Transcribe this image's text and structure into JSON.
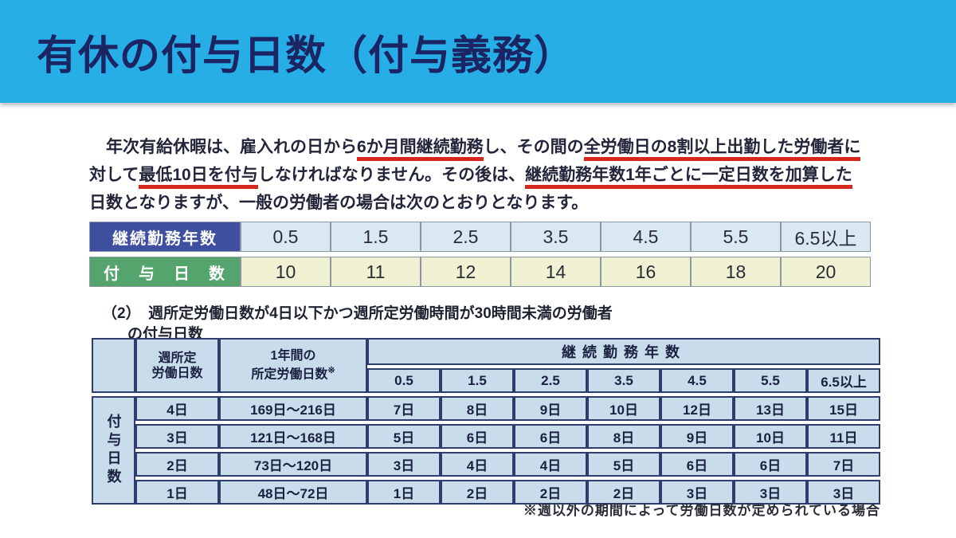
{
  "title": "有休の付与日数（付与義務）",
  "colors": {
    "banner_cyan": "#27aee6",
    "title_navy": "#1b2564",
    "underline_red": "#d4281f",
    "table1_header_blue": "#3e4fa0",
    "table1_header_green": "#55a46e",
    "table1_row1_bg": "#d9e8f3",
    "table1_row2_bg": "#f0f1d2",
    "table2_cell_bg": "#c9dcec",
    "table2_border_navy": "#2e3e6c"
  },
  "paragraph": {
    "lines": [
      [
        {
          "text": "　年次有給休暇は、雇入れの日から",
          "u": false
        },
        {
          "text": "6か月間継続勤務",
          "u": true
        },
        {
          "text": "し、その間の",
          "u": false
        },
        {
          "text": "全労働日の8割以上出勤した労働者に",
          "u": true
        }
      ],
      [
        {
          "text": "対して",
          "u": false
        },
        {
          "text": "最低10日を付与",
          "u": true
        },
        {
          "text": "しなければなりません。その後は、",
          "u": false
        },
        {
          "text": "継続勤務年数1年ごとに一定日数を加算した",
          "u": true
        }
      ],
      [
        {
          "text": "日数となりますが、一般の労働者の場合は次のとおりとなります。",
          "u": false
        }
      ]
    ]
  },
  "table1": {
    "row1_label": "継続勤務年数",
    "row1_values": [
      "0.5",
      "1.5",
      "2.5",
      "3.5",
      "4.5",
      "5.5",
      "6.5以上"
    ],
    "row2_label": "付　与　日　数",
    "row2_values": [
      "10",
      "11",
      "12",
      "14",
      "16",
      "18",
      "20"
    ]
  },
  "subheading": {
    "line1": "（2）　週所定労働日数が4日以下かつ週所定労働時間が30時間未満の労働者",
    "line2": "の付与日数"
  },
  "table2": {
    "corner_label": "付与日数",
    "col_weekly_line1": "週所定",
    "col_weekly_line2": "労働日数",
    "col_yearly_line1": "1年間の",
    "col_yearly_line2": "所定労働日数",
    "col_yearly_note": "※",
    "col_group": "継続勤務年数",
    "years": [
      "0.5",
      "1.5",
      "2.5",
      "3.5",
      "4.5",
      "5.5",
      "6.5以上"
    ],
    "rows": [
      {
        "weekly": "4日",
        "yearly": "169日～216日",
        "days": [
          "7日",
          "8日",
          "9日",
          "10日",
          "12日",
          "13日",
          "15日"
        ]
      },
      {
        "weekly": "3日",
        "yearly": "121日～168日",
        "days": [
          "5日",
          "6日",
          "6日",
          "8日",
          "9日",
          "10日",
          "11日"
        ]
      },
      {
        "weekly": "2日",
        "yearly": "73日～120日",
        "days": [
          "3日",
          "4日",
          "4日",
          "5日",
          "6日",
          "6日",
          "7日"
        ]
      },
      {
        "weekly": "1日",
        "yearly": "48日～72日",
        "days": [
          "1日",
          "2日",
          "2日",
          "2日",
          "3日",
          "3日",
          "3日"
        ]
      }
    ]
  },
  "footnote": "※週以外の期間によって労働日数が定められている場合"
}
